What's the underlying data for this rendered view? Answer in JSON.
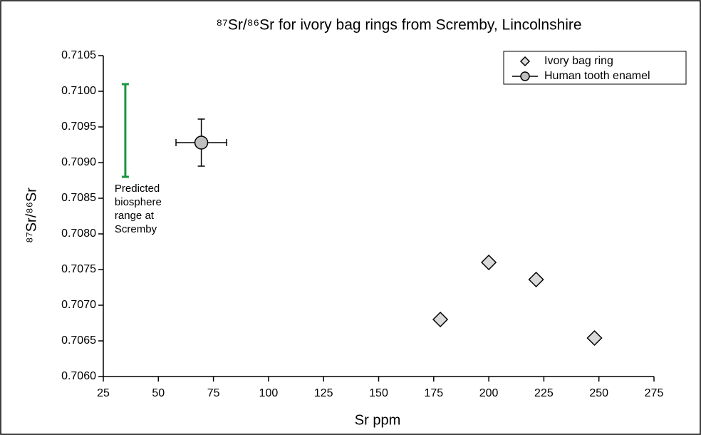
{
  "chart_data": {
    "type": "scatter",
    "title": "⁸⁷Sr/⁸⁶Sr for ivory bag rings from Scremby, Lincolnshire",
    "x_label": "Sr ppm",
    "y_label": "⁸⁷Sr/⁸⁶Sr",
    "xlim": [
      25,
      275
    ],
    "xticks": [
      25,
      50,
      75,
      100,
      125,
      150,
      175,
      200,
      225,
      250,
      275
    ],
    "ylim": [
      0.706,
      0.7105
    ],
    "yticks": [
      {
        "value": 0.706,
        "label": "0.7060"
      },
      0.7065,
      {
        "value": 0.707,
        "label": "0.7070"
      },
      0.7075,
      {
        "value": 0.708,
        "label": "0.7080"
      },
      0.7085,
      {
        "value": 0.709,
        "label": "0.7090"
      },
      0.7095,
      {
        "value": 0.71,
        "label": "0.7100"
      },
      0.7105
    ],
    "legend": "top-right",
    "series": [
      {
        "name": "Ivory bag ring",
        "color": "#d9d9d9",
        "marker": "diamond",
        "x": [
          178,
          200,
          221.5,
          248
        ],
        "values": [
          0.7068,
          0.7076,
          0.70736,
          0.70654
        ]
      },
      {
        "name": "Human tooth enamel",
        "color": "#bfbfbf",
        "marker": "circle",
        "x": [
          69.5
        ],
        "values": [
          0.70928
        ],
        "x_error": [
          11.5
        ],
        "y_error": [
          0.00033
        ]
      }
    ],
    "biosphere_range": {
      "x": 35,
      "low": 0.7088,
      "high": 0.7101,
      "color": "#1a9641",
      "label_lines": [
        "Predicted",
        "biosphere",
        "range at",
        "Scremby"
      ]
    }
  }
}
